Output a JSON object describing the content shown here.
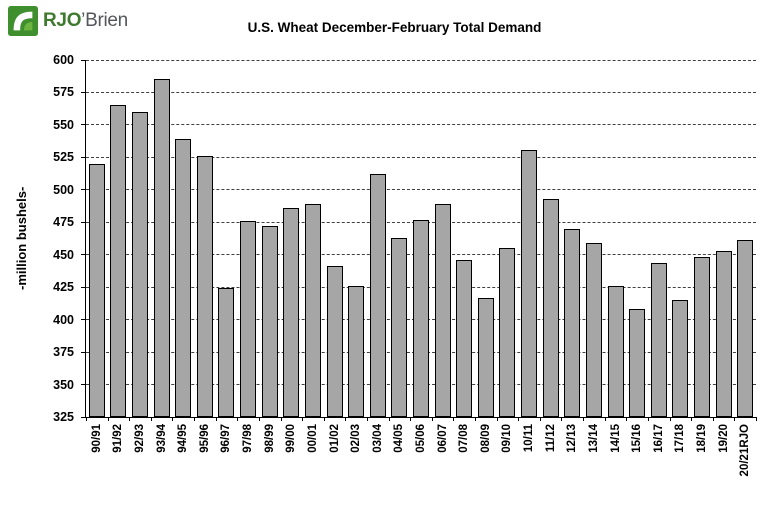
{
  "logo": {
    "rjo": "RJO",
    "brien": "’Brien",
    "icon": "rjobrien-green-square-swoosh"
  },
  "colors": {
    "logo_green": "#3f8f2f",
    "logo_text_gray": "#54565a",
    "bar_fill": "#a6a6a6",
    "bar_border": "#000000",
    "gridline": "#404040"
  },
  "chart_data": {
    "type": "bar",
    "title": "U.S. Wheat December-February Total Demand",
    "ylabel": "-million bushels-",
    "xlabel": "",
    "ylim": [
      325,
      600
    ],
    "ytick_interval": 25,
    "grid": "dashed-horizontal",
    "legend": "none",
    "bar_color": "#a6a6a6",
    "bar_border_color": "#000000",
    "categories": [
      "90/91",
      "91/92",
      "92/93",
      "93/94",
      "94/95",
      "95/96",
      "96/97",
      "97/98",
      "98/99",
      "99/00",
      "00/01",
      "01/02",
      "02/03",
      "03/04",
      "04/05",
      "05/06",
      "06/07",
      "07/08",
      "08/09",
      "09/10",
      "10/11",
      "11/12",
      "12/13",
      "13/14",
      "14/15",
      "15/16",
      "16/17",
      "17/18",
      "18/19",
      "19/20",
      "20/21RJO"
    ],
    "values": [
      520,
      565,
      560,
      585,
      539,
      526,
      424,
      476,
      472,
      486,
      489,
      441,
      426,
      512,
      463,
      477,
      489,
      446,
      417,
      455,
      531,
      493,
      470,
      459,
      426,
      408,
      444,
      415,
      448,
      453,
      461
    ]
  }
}
